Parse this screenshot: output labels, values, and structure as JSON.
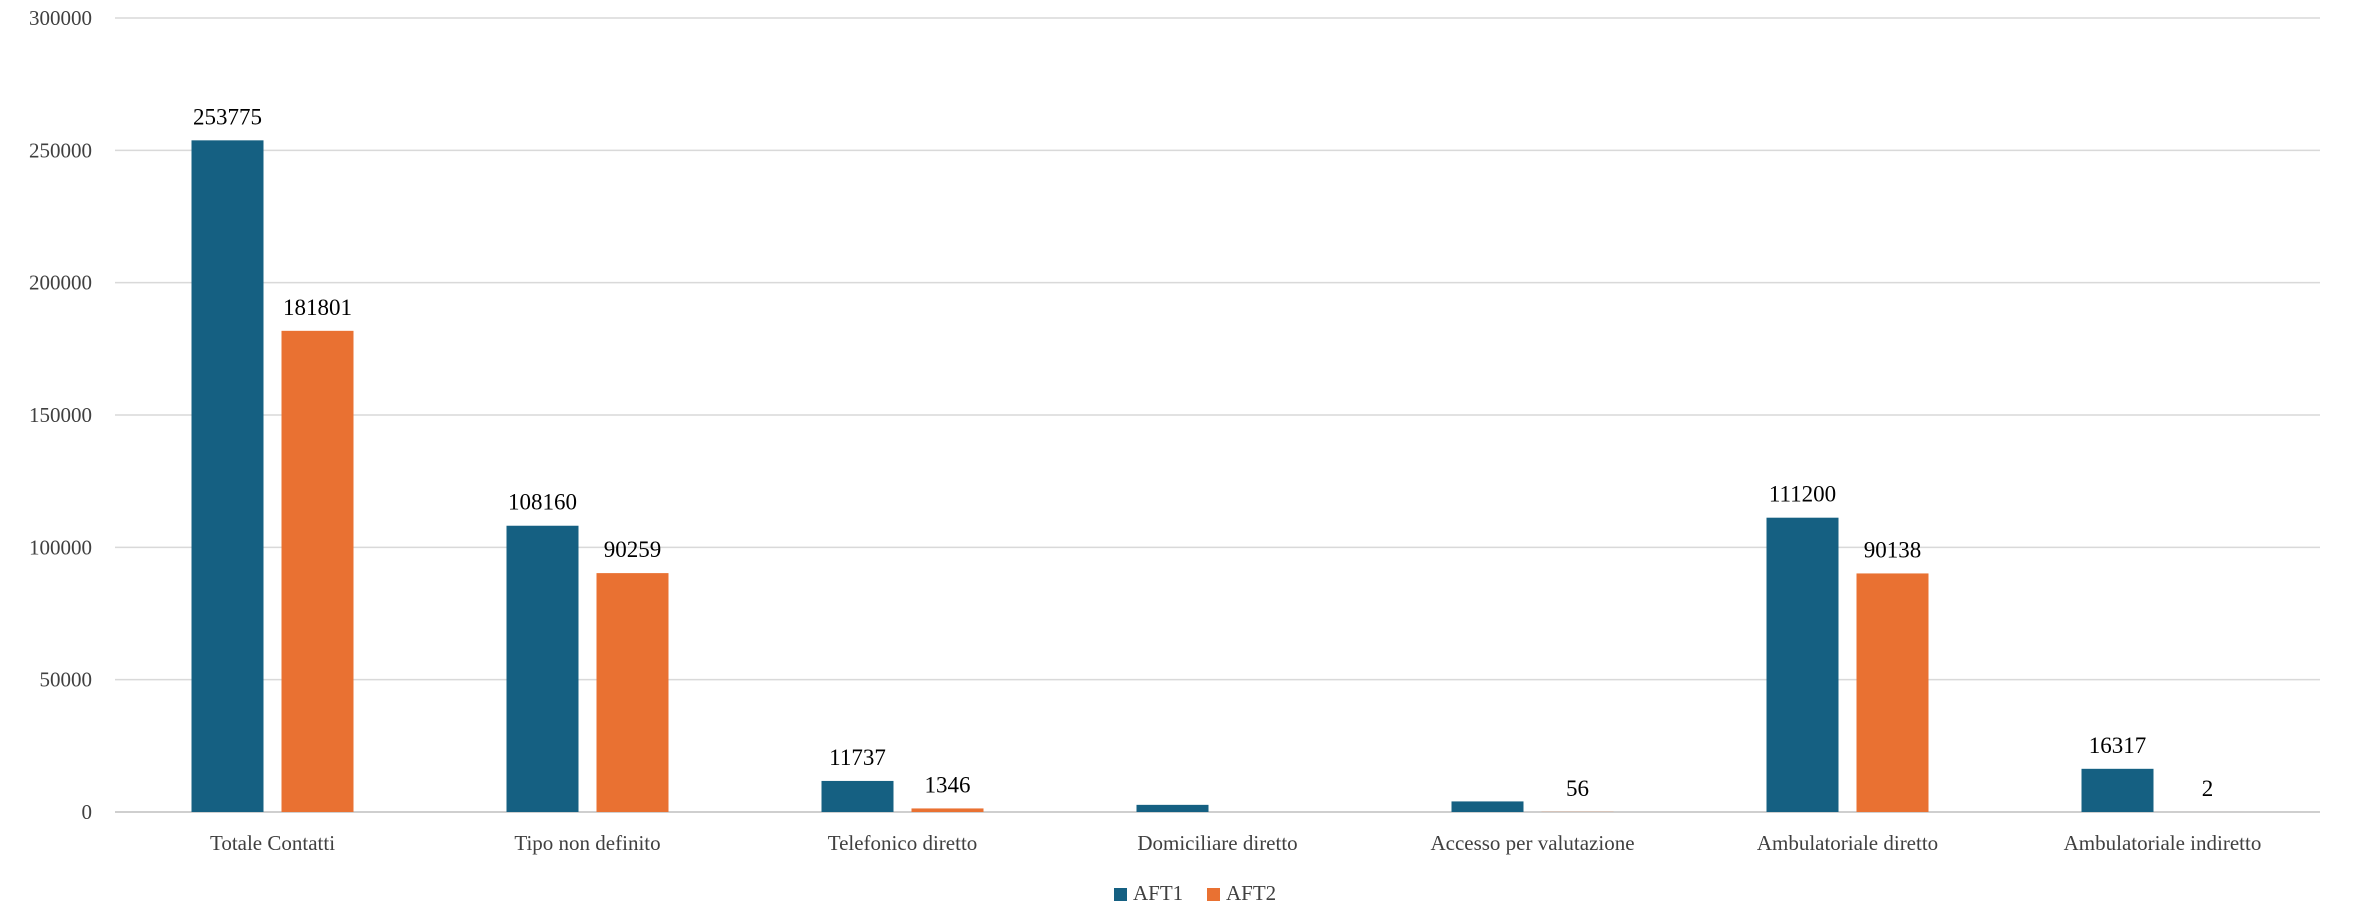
{
  "chart_data": {
    "type": "bar",
    "title": "",
    "xlabel": "",
    "ylabel": "",
    "ylim": [
      0,
      300000
    ],
    "yticks": [
      0,
      50000,
      100000,
      150000,
      200000,
      250000,
      300000
    ],
    "grid": true,
    "legend_position": "bottom",
    "categories": [
      "Totale Contatti",
      "Tipo non definito",
      "Telefonico diretto",
      "Domiciliare diretto",
      "Accesso per valutazione",
      "Ambulatoriale diretto",
      "Ambulatoriale indiretto"
    ],
    "series": [
      {
        "name": "AFT1",
        "color": "#156082",
        "values": [
          253775,
          108160,
          11737,
          2700,
          4000,
          111200,
          16317
        ],
        "labels": [
          "253775",
          "108160",
          "11737",
          "",
          "",
          "111200",
          "16317"
        ]
      },
      {
        "name": "AFT2",
        "color": "#e97132",
        "values": [
          181801,
          90259,
          1346,
          0,
          56,
          90138,
          2
        ],
        "labels": [
          "181801",
          "90259",
          "1346",
          "",
          "56",
          "90138",
          "2"
        ]
      }
    ]
  }
}
